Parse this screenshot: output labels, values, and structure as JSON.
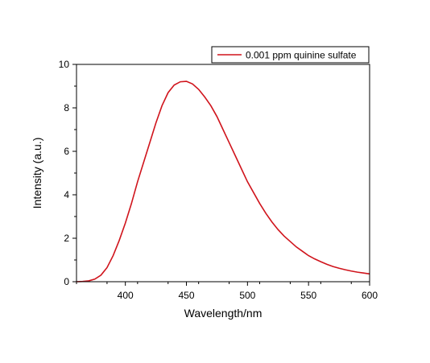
{
  "chart_data": {
    "type": "line",
    "title": "",
    "xlabel": "Wavelength/nm",
    "ylabel": "Intensity (a.u.)",
    "xlim": [
      360,
      600
    ],
    "ylim": [
      0,
      10
    ],
    "x_ticks": [
      400,
      450,
      500,
      550,
      600
    ],
    "y_ticks": [
      0,
      2,
      4,
      6,
      8,
      10
    ],
    "grid": false,
    "legend_position": "top-right",
    "series": [
      {
        "name": "0.001 ppm quinine sulfate",
        "color": "#d0141c",
        "x": [
          360,
          365,
          370,
          375,
          380,
          385,
          390,
          395,
          400,
          405,
          410,
          415,
          420,
          425,
          430,
          435,
          440,
          445,
          450,
          455,
          460,
          465,
          470,
          475,
          480,
          485,
          490,
          495,
          500,
          505,
          510,
          515,
          520,
          525,
          530,
          535,
          540,
          545,
          550,
          555,
          560,
          565,
          570,
          575,
          580,
          585,
          590,
          595,
          600
        ],
        "y": [
          0.0,
          0.01,
          0.04,
          0.12,
          0.3,
          0.65,
          1.2,
          1.9,
          2.7,
          3.6,
          4.6,
          5.5,
          6.4,
          7.3,
          8.1,
          8.7,
          9.05,
          9.2,
          9.22,
          9.1,
          8.85,
          8.5,
          8.1,
          7.6,
          7.0,
          6.4,
          5.8,
          5.2,
          4.6,
          4.1,
          3.6,
          3.15,
          2.75,
          2.4,
          2.1,
          1.85,
          1.6,
          1.4,
          1.2,
          1.05,
          0.92,
          0.8,
          0.7,
          0.62,
          0.55,
          0.49,
          0.44,
          0.4,
          0.36
        ]
      }
    ]
  }
}
